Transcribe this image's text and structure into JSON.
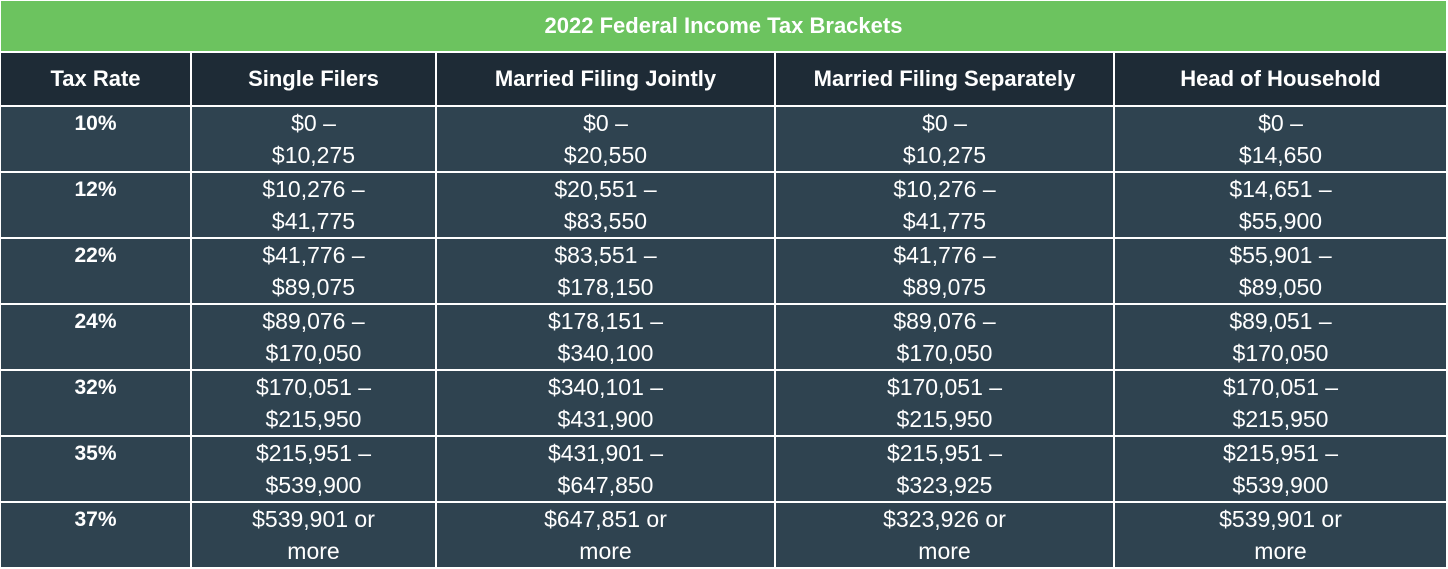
{
  "title": "2022 Federal Income Tax Brackets",
  "headers": [
    "Tax Rate",
    "Single Filers",
    "Married Filing Jointly",
    "Married Filing Separately",
    "Head of Household"
  ],
  "rows": [
    {
      "rate": "10%",
      "cells": [
        [
          "$0 –",
          "$10,275"
        ],
        [
          "$0 –",
          "$20,550"
        ],
        [
          "$0 –",
          "$10,275"
        ],
        [
          "$0  –",
          "$14,650"
        ]
      ]
    },
    {
      "rate": "12%",
      "cells": [
        [
          "$10,276 –",
          "$41,775"
        ],
        [
          "$20,551 –",
          "$83,550"
        ],
        [
          "$10,276 –",
          "$41,775"
        ],
        [
          "$14,651 –",
          "$55,900"
        ]
      ]
    },
    {
      "rate": "22%",
      "cells": [
        [
          "$41,776 –",
          "$89,075"
        ],
        [
          "$83,551 –",
          "$178,150"
        ],
        [
          "$41,776 –",
          "$89,075"
        ],
        [
          "$55,901 –",
          "$89,050"
        ]
      ]
    },
    {
      "rate": "24%",
      "cells": [
        [
          "$89,076 –",
          "$170,050"
        ],
        [
          "$178,151 –",
          "$340,100"
        ],
        [
          "$89,076 –",
          "$170,050"
        ],
        [
          "$89,051 –",
          "$170,050"
        ]
      ]
    },
    {
      "rate": "32%",
      "cells": [
        [
          "$170,051 –",
          "$215,950"
        ],
        [
          "$340,101 –",
          "$431,900"
        ],
        [
          "$170,051 –",
          "$215,950"
        ],
        [
          "$170,051 –",
          "$215,950"
        ]
      ]
    },
    {
      "rate": "35%",
      "cells": [
        [
          "$215,951 –",
          "$539,900"
        ],
        [
          "$431,901 –",
          "$647,850"
        ],
        [
          "$215,951 –",
          "$323,925"
        ],
        [
          "$215,951 –",
          "$539,900"
        ]
      ]
    },
    {
      "rate": "37%",
      "cells": [
        [
          "$539,901 or",
          "more"
        ],
        [
          "$647,851 or",
          "more"
        ],
        [
          "$323,926 or",
          "more"
        ],
        [
          "$539,901 or",
          "more"
        ]
      ]
    }
  ],
  "colors": {
    "title_bg": "#6cc35f",
    "header_bg": "#1e2b36",
    "cell_bg": "#2f4350",
    "text": "#ffffff"
  }
}
